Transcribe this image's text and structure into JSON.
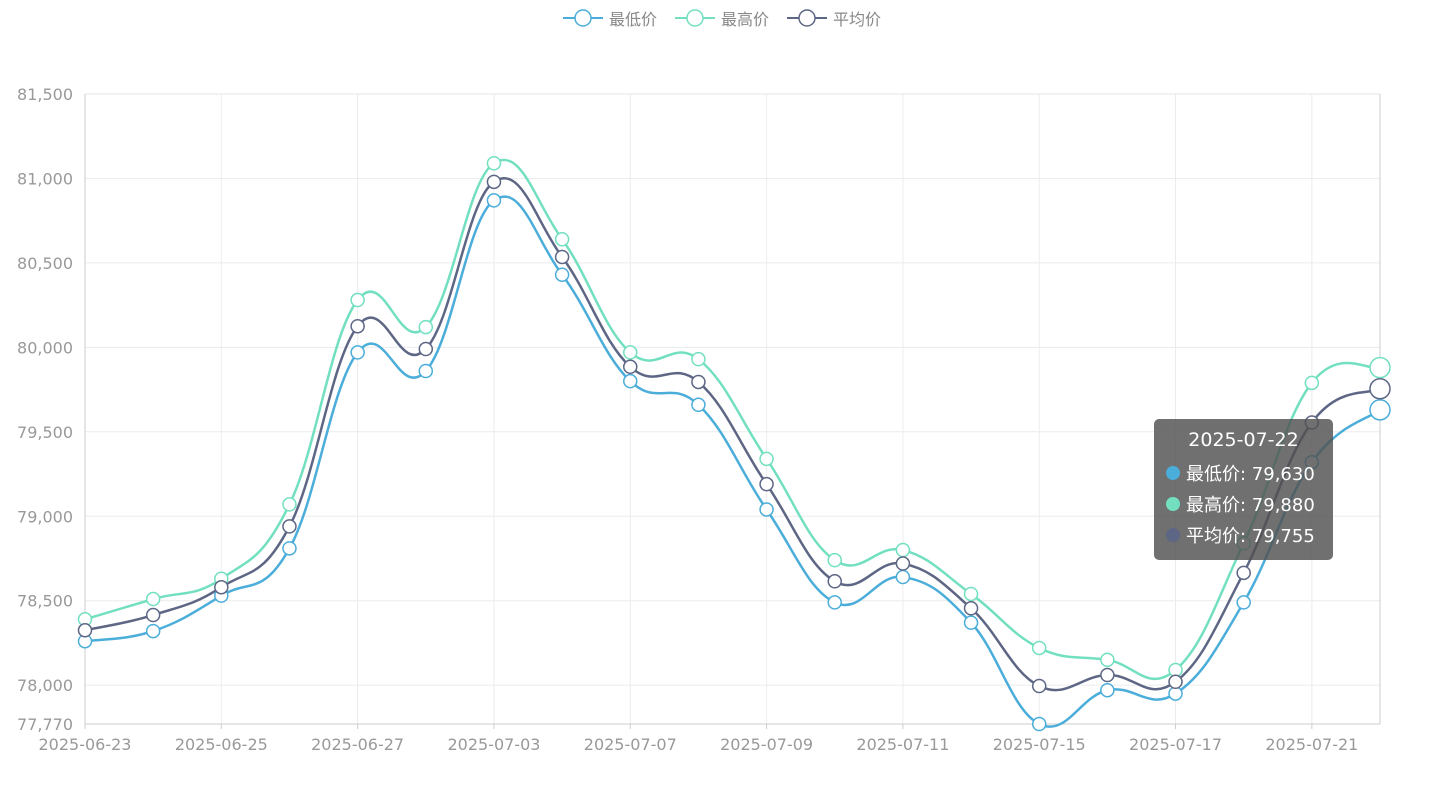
{
  "legend": {
    "items": [
      {
        "label": "最低价",
        "color": "#4badd9"
      },
      {
        "label": "最高价",
        "color": "#72e0c0"
      },
      {
        "label": "平均价",
        "color": "#5d6684"
      }
    ]
  },
  "tooltip": {
    "title": "2025-07-22",
    "rows": [
      {
        "label": "最低价: 79,630",
        "color": "#4badd9"
      },
      {
        "label": "最高价: 79,880",
        "color": "#72e0c0"
      },
      {
        "label": "平均价: 79,755",
        "color": "#5d6684"
      }
    ]
  },
  "chart_data": {
    "type": "line",
    "x": [
      "2025-06-23",
      "2025-06-24",
      "2025-06-25",
      "2025-06-26",
      "2025-06-27",
      "2025-06-30",
      "2025-07-03",
      "2025-07-04",
      "2025-07-07",
      "2025-07-08",
      "2025-07-09",
      "2025-07-10",
      "2025-07-11",
      "2025-07-14",
      "2025-07-15",
      "2025-07-16",
      "2025-07-17",
      "2025-07-18",
      "2025-07-21",
      "2025-07-22"
    ],
    "x_tick_labels": [
      "2025-06-23",
      "2025-06-25",
      "2025-06-27",
      "2025-07-03",
      "2025-07-07",
      "2025-07-09",
      "2025-07-11",
      "2025-07-15",
      "2025-07-17",
      "2025-07-21"
    ],
    "y_tick_labels": [
      "81,500",
      "81,000",
      "80,500",
      "80,000",
      "79,500",
      "79,000",
      "78,500",
      "78,000",
      "77,770"
    ],
    "ylim": [
      77770,
      81500
    ],
    "grid": true,
    "legend_position": "top-center",
    "series": [
      {
        "name": "最低价",
        "color": "#4badd9",
        "values": [
          78260,
          78320,
          78530,
          78810,
          79970,
          79860,
          80870,
          80430,
          79800,
          79660,
          79040,
          78490,
          78640,
          78370,
          77770,
          77970,
          77950,
          78490,
          79320,
          79630
        ]
      },
      {
        "name": "最高价",
        "color": "#72e0c0",
        "values": [
          78390,
          78510,
          78630,
          79070,
          80280,
          80120,
          81090,
          80640,
          79970,
          79930,
          79340,
          78740,
          78800,
          78540,
          78220,
          78150,
          78090,
          78840,
          79790,
          79880
        ]
      },
      {
        "name": "平均价",
        "color": "#5d6684",
        "values": [
          78325,
          78415,
          78580,
          78940,
          80125,
          79990,
          80980,
          80535,
          79885,
          79795,
          79190,
          78615,
          78720,
          78455,
          77995,
          78060,
          78020,
          78665,
          79555,
          79755
        ]
      }
    ]
  }
}
